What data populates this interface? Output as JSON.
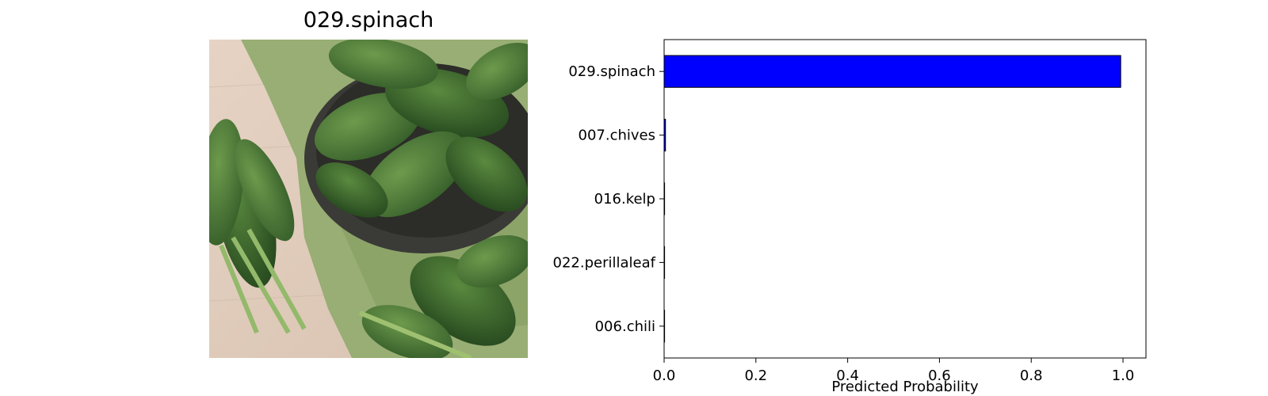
{
  "figure": {
    "image_title": "029.spinach",
    "photo_icon": "spinach-photo"
  },
  "chart_data": {
    "type": "bar",
    "orientation": "horizontal",
    "categories": [
      "029.spinach",
      "007.chives",
      "016.kelp",
      "022.perillaleaf",
      "006.chili"
    ],
    "values": [
      0.995,
      0.003,
      0.001,
      0.001,
      0.0005
    ],
    "xlabel": "Predicted Probability",
    "ylabel": "",
    "xlim": [
      0,
      1.05
    ],
    "xticks": [
      0.0,
      0.2,
      0.4,
      0.6,
      0.8,
      1.0
    ],
    "xtick_labels": [
      "0.0",
      "0.2",
      "0.4",
      "0.6",
      "0.8",
      "1.0"
    ],
    "grid": false,
    "bar_color": "#0000ff",
    "edge_color": "#000000"
  }
}
